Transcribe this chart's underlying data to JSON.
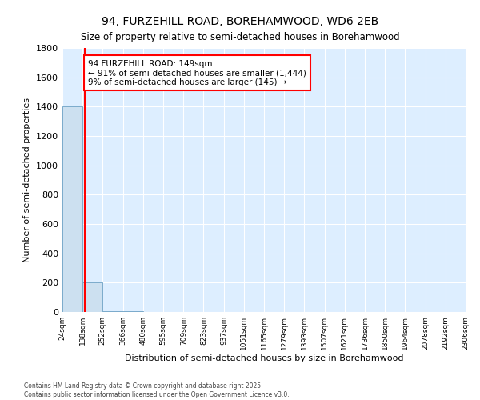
{
  "title": "94, FURZEHILL ROAD, BOREHAMWOOD, WD6 2EB",
  "subtitle": "Size of property relative to semi-detached houses in Borehamwood",
  "xlabel": "Distribution of semi-detached houses by size in Borehamwood",
  "ylabel": "Number of semi-detached properties",
  "annotation_line1": "94 FURZEHILL ROAD: 149sqm",
  "annotation_line2": "← 91% of semi-detached houses are smaller (1,444)",
  "annotation_line3": "9% of semi-detached houses are larger (145) →",
  "footer_line1": "Contains HM Land Registry data © Crown copyright and database right 2025.",
  "footer_line2": "Contains public sector information licensed under the Open Government Licence v3.0.",
  "bar_edges": [
    24,
    138,
    252,
    366,
    480,
    595,
    709,
    823,
    937,
    1051,
    1165,
    1279,
    1393,
    1507,
    1621,
    1736,
    1850,
    1964,
    2078,
    2192,
    2306
  ],
  "bar_heights": [
    1400,
    200,
    5,
    3,
    2,
    1,
    1,
    1,
    1,
    1,
    0,
    0,
    0,
    0,
    0,
    0,
    0,
    0,
    0,
    0
  ],
  "bar_color": "#cce0f0",
  "bar_edge_color": "#7aaacb",
  "property_line_x": 149,
  "property_line_color": "red",
  "annotation_box_edgecolor": "red",
  "background_color": "#ddeeff",
  "fig_background": "#ffffff",
  "ylim": [
    0,
    1800
  ],
  "tick_labels": [
    "24sqm",
    "138sqm",
    "252sqm",
    "366sqm",
    "480sqm",
    "595sqm",
    "709sqm",
    "823sqm",
    "937sqm",
    "1051sqm",
    "1165sqm",
    "1279sqm",
    "1393sqm",
    "1507sqm",
    "1621sqm",
    "1736sqm",
    "1850sqm",
    "1964sqm",
    "2078sqm",
    "2192sqm",
    "2306sqm"
  ]
}
